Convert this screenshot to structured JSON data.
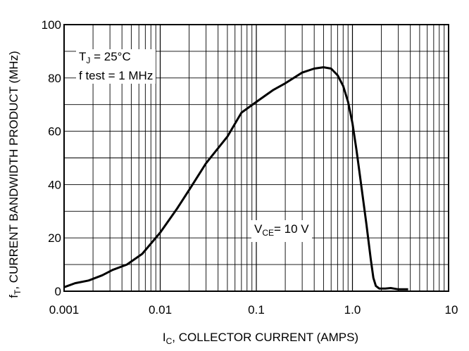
{
  "chart_data": {
    "type": "line",
    "x_scale": "log",
    "xlim": [
      0.001,
      10
    ],
    "ylim": [
      0,
      100
    ],
    "x_ticks": [
      0.001,
      0.01,
      0.1,
      1,
      10
    ],
    "x_tick_labels": [
      "0.001",
      "0.01",
      "0.1",
      "1.0",
      "10"
    ],
    "y_ticks": [
      0,
      20,
      40,
      60,
      80,
      100
    ],
    "y_tick_labels": [
      "0",
      "20",
      "40",
      "60",
      "80",
      "100"
    ],
    "y_minor_step": 10,
    "grid": true,
    "ylabel_main": "f",
    "ylabel_sub": "T",
    "ylabel_rest": ", CURRENT BANDWIDTH PRODUCT (MHz)",
    "xlabel_main": "I",
    "xlabel_sub": "C",
    "xlabel_rest": ", COLLECTOR CURRENT (AMPS)",
    "conditions": {
      "tj_main": "T",
      "tj_sub": "J",
      "tj_rest": " = 25°C",
      "ftest": "f test = 1 MHz"
    },
    "curve_label": {
      "main": "V",
      "sub": "CE",
      "rest": "= 10 V"
    },
    "series": [
      {
        "x": [
          0.001,
          0.0013,
          0.0018,
          0.0025,
          0.0032,
          0.0045,
          0.0065,
          0.01,
          0.015,
          0.02,
          0.03,
          0.05,
          0.07,
          0.1,
          0.15,
          0.2,
          0.3,
          0.4,
          0.5,
          0.6,
          0.7,
          0.8,
          0.9,
          1.0,
          1.1,
          1.2,
          1.4,
          1.55,
          1.65,
          1.75,
          1.9,
          2.2,
          2.5,
          3.0,
          3.8
        ],
        "y": [
          1.5,
          3,
          4,
          6,
          8,
          10,
          14,
          22,
          31,
          38,
          48,
          58,
          67,
          71,
          75.5,
          78,
          82,
          83.5,
          84,
          83.5,
          81,
          77,
          71,
          63,
          53,
          43,
          25,
          12,
          5,
          2,
          1,
          1,
          1.2,
          0.7,
          0.7
        ]
      }
    ]
  }
}
